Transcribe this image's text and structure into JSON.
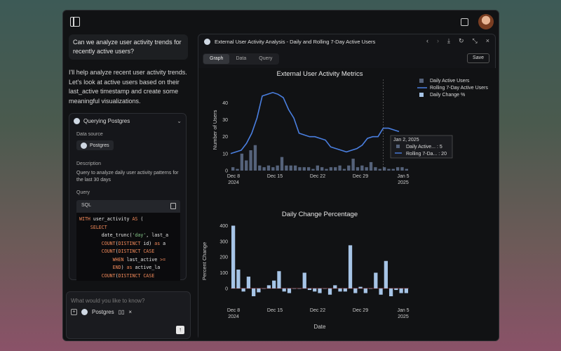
{
  "chat": {
    "user_message": "Can we analyze user activity trends for recently active users?",
    "assistant_message": "I'll help analyze recent user activity trends. Let's look at active users based on their last_active timestamp and create some meaningful visualizations.",
    "tool": {
      "title": "Querying Postgres",
      "data_source_label": "Data source",
      "data_source": "Postgres",
      "description_label": "Description",
      "description": "Query to analyze daily user activity patterns for the last 30 days",
      "query_label": "Query",
      "code_lang": "SQL"
    },
    "input": {
      "placeholder": "What would you like to know?",
      "chip_label": "Postgres"
    }
  },
  "panel": {
    "title": "External User Activity Analysis - Daily and Rolling 7-Day Active Users",
    "tabs": [
      "Graph",
      "Data",
      "Query"
    ],
    "active_tab": "Graph",
    "save_label": "Save"
  },
  "chart_data": [
    {
      "type": "bar",
      "title": "External User Activity Metrics",
      "ylabel": "Number of Users",
      "ylim": [
        0,
        48
      ],
      "x_ticks": [
        "Dec 8\n2024",
        "Dec 15",
        "Dec 22",
        "Dec 29",
        "Jan 5\n2025"
      ],
      "y_ticks": [
        0,
        10,
        20,
        30,
        40
      ],
      "series": [
        {
          "name": "Daily Active Users",
          "type": "bar",
          "color": "#55627a",
          "values": [
            2,
            1,
            10,
            6,
            12,
            15,
            3,
            2,
            3,
            2,
            3,
            8,
            3,
            3,
            3,
            2,
            2,
            2,
            1,
            3,
            2,
            1,
            2,
            2,
            3,
            1,
            3,
            7,
            2,
            3,
            2,
            5,
            2,
            1,
            2,
            1,
            1,
            2,
            2,
            1
          ]
        },
        {
          "name": "Rolling 7-Day Active Users",
          "type": "line",
          "color": "#4a7fe0",
          "values": [
            10,
            11,
            12,
            16,
            22,
            31,
            44,
            45,
            46,
            45,
            43,
            36,
            31,
            22,
            21,
            20,
            20,
            19,
            18,
            14,
            13,
            12,
            11,
            12,
            13,
            15,
            19,
            20,
            20,
            25,
            25,
            24,
            23
          ]
        },
        {
          "name": "Daily Change %",
          "type": "bar",
          "color": "#a6c4e6",
          "values": []
        }
      ],
      "hover": {
        "date": "Jan 2, 2025",
        "daily_label": "Daily Active... : 5",
        "rolling_label": "Rolling 7-Da... : 20"
      }
    },
    {
      "type": "bar",
      "title": "Daily Change Percentage",
      "xlabel": "Date",
      "ylabel": "Percent Change",
      "ylim": [
        -50,
        420
      ],
      "x_ticks": [
        "Dec 8\n2024",
        "Dec 15",
        "Dec 22",
        "Dec 29",
        "Jan 5\n2025"
      ],
      "y_ticks": [
        0,
        100,
        200,
        300,
        400
      ],
      "values": [
        400,
        120,
        -20,
        75,
        -50,
        -25,
        0,
        20,
        50,
        110,
        -20,
        -30,
        0,
        0,
        100,
        -10,
        -20,
        -30,
        0,
        -40,
        20,
        -20,
        -20,
        275,
        -30,
        10,
        -30,
        0,
        100,
        -40,
        175,
        -50,
        -10,
        -30,
        -30
      ]
    }
  ]
}
